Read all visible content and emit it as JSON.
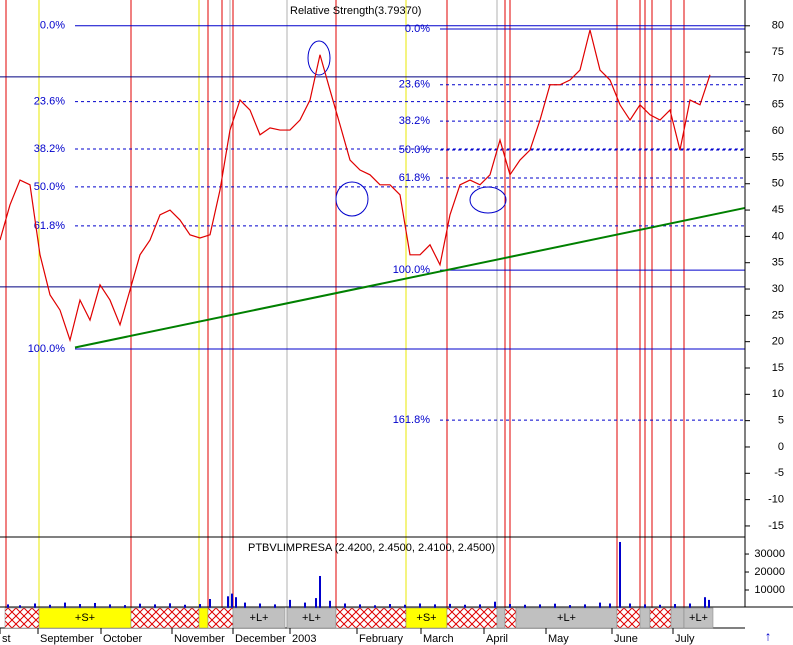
{
  "chart_data": [
    {
      "type": "line",
      "title": "Relative Strength(3.79370)",
      "xlim": [
        0,
        745
      ],
      "ylim": [
        -17.1,
        84.9
      ],
      "yticks": [
        80,
        75,
        70,
        65,
        60,
        55,
        50,
        45,
        40,
        35,
        30,
        25,
        20,
        15,
        10,
        5,
        0,
        -5,
        -10,
        -15
      ],
      "xticks": [
        {
          "value": 0,
          "label": "st"
        },
        {
          "value": 38,
          "label": "September"
        },
        {
          "value": 101,
          "label": "October"
        },
        {
          "value": 172,
          "label": "November"
        },
        {
          "value": 233,
          "label": "December"
        },
        {
          "value": 290,
          "label": "2003"
        },
        {
          "value": 357,
          "label": "February"
        },
        {
          "value": 421,
          "label": "March"
        },
        {
          "value": 484,
          "label": "April"
        },
        {
          "value": 546,
          "label": "May"
        },
        {
          "value": 612,
          "label": "June"
        },
        {
          "value": 673,
          "label": "July"
        }
      ],
      "series": [
        {
          "color": "#e00000",
          "x": [
            0,
            10,
            20,
            30,
            40,
            50,
            60,
            70,
            80,
            90,
            100,
            110,
            120,
            130,
            140,
            150,
            160,
            170,
            180,
            190,
            200,
            210,
            220,
            230,
            240,
            250,
            260,
            270,
            280,
            290,
            300,
            310,
            320,
            330,
            340,
            350,
            360,
            370,
            380,
            390,
            400,
            410,
            420,
            430,
            440,
            450,
            460,
            470,
            480,
            490,
            500,
            510,
            520,
            530,
            540,
            550,
            560,
            570,
            580,
            590,
            600,
            610,
            620,
            630,
            640,
            650,
            660,
            670,
            680,
            690,
            700,
            710
          ],
          "values": [
            39.3,
            46.0,
            50.7,
            49.8,
            36.5,
            28.9,
            26.0,
            20.3,
            27.9,
            24.1,
            30.8,
            27.9,
            23.2,
            29.8,
            36.5,
            39.3,
            44.1,
            45.0,
            43.1,
            40.3,
            39.7,
            40.3,
            48.8,
            60.2,
            65.9,
            64.0,
            59.3,
            60.6,
            60.2,
            60.2,
            62.1,
            65.9,
            74.5,
            67.8,
            61.2,
            54.5,
            52.6,
            51.7,
            49.8,
            49.8,
            47.9,
            36.5,
            36.5,
            38.4,
            34.6,
            44.1,
            49.8,
            50.7,
            49.8,
            51.7,
            58.3,
            51.7,
            54.5,
            56.4,
            62.1,
            68.8,
            68.8,
            69.7,
            71.6,
            79.2,
            71.6,
            69.7,
            65.0,
            62.1,
            65.0,
            63.1,
            62.1,
            64.0,
            56.4,
            65.9,
            65.0,
            70.7
          ]
        }
      ],
      "fib_levels": [
        {
          "value": 80,
          "label": "0.0%",
          "x0": 75,
          "style": "solid"
        },
        {
          "value": 65.6,
          "label": "23.6%",
          "x0": 75,
          "style": "dotted"
        },
        {
          "value": 56.6,
          "label": "38.2%",
          "x0": 75,
          "style": "dotted"
        },
        {
          "value": 49.4,
          "label": "50.0%",
          "x0": 75,
          "style": "dotted"
        },
        {
          "value": 42.0,
          "label": "61.8%",
          "x0": 75,
          "style": "dotted"
        },
        {
          "value": 18.6,
          "label": "100.0%",
          "x0": 75,
          "style": "solid"
        },
        {
          "value": 79.4,
          "label": "0.0%",
          "x0": 440,
          "style": "solid"
        },
        {
          "value": 68.8,
          "label": "23.6%",
          "x0": 440,
          "style": "dotted"
        },
        {
          "value": 61.9,
          "label": "38.2%",
          "x0": 440,
          "style": "dotted"
        },
        {
          "value": 56.4,
          "label": "50.0%",
          "x0": 440,
          "style": "dotted"
        },
        {
          "value": 51.1,
          "label": "61.8%",
          "x0": 440,
          "style": "dotted"
        },
        {
          "value": 33.6,
          "label": "100.0%",
          "x0": 440,
          "style": "solid"
        },
        {
          "value": 5.1,
          "label": "161.8%",
          "x0": 440,
          "style": "dotted"
        }
      ],
      "hlines": [
        70.3,
        30.4
      ],
      "trendline": {
        "color": "#008000",
        "x": [
          75,
          745
        ],
        "values": [
          18.9,
          45.4
        ]
      },
      "vlines": [
        {
          "x": 6,
          "color": "#e00000"
        },
        {
          "x": 39,
          "color": "#e8e800"
        },
        {
          "x": 131,
          "color": "#e00000"
        },
        {
          "x": 199,
          "color": "#e8e800"
        },
        {
          "x": 208,
          "color": "#e00000"
        },
        {
          "x": 222,
          "color": "#e00000"
        },
        {
          "x": 230,
          "color": "#b0b0b0"
        },
        {
          "x": 233,
          "color": "#e00000"
        },
        {
          "x": 287,
          "color": "#b0b0b0"
        },
        {
          "x": 336,
          "color": "#e00000"
        },
        {
          "x": 406,
          "color": "#e8e800"
        },
        {
          "x": 447,
          "color": "#e00000"
        },
        {
          "x": 497,
          "color": "#b0b0b0"
        },
        {
          "x": 505,
          "color": "#e00000"
        },
        {
          "x": 510,
          "color": "#e00000"
        },
        {
          "x": 617,
          "color": "#e00000"
        },
        {
          "x": 640,
          "color": "#e00000"
        },
        {
          "x": 645,
          "color": "#e00000"
        },
        {
          "x": 652,
          "color": "#e00000"
        },
        {
          "x": 671,
          "color": "#e00000"
        },
        {
          "x": 684,
          "color": "#e00000"
        }
      ],
      "signal_strip": [
        {
          "x": [
            5,
            39
          ],
          "kind": "hatch"
        },
        {
          "x": [
            39,
            131
          ],
          "kind": "yellow",
          "label": "+S+"
        },
        {
          "x": [
            131,
            199
          ],
          "kind": "hatch"
        },
        {
          "x": [
            199,
            208
          ],
          "kind": "yellow"
        },
        {
          "x": [
            208,
            233
          ],
          "kind": "hatch"
        },
        {
          "x": [
            233,
            285
          ],
          "kind": "gray",
          "label": "+L+"
        },
        {
          "x": [
            287,
            336
          ],
          "kind": "gray",
          "label": "+L+"
        },
        {
          "x": [
            336,
            406
          ],
          "kind": "hatch"
        },
        {
          "x": [
            406,
            447
          ],
          "kind": "yellow",
          "label": "+S+"
        },
        {
          "x": [
            447,
            497
          ],
          "kind": "hatch"
        },
        {
          "x": [
            497,
            505
          ],
          "kind": "gray"
        },
        {
          "x": [
            505,
            516
          ],
          "kind": "hatch"
        },
        {
          "x": [
            516,
            617
          ],
          "kind": "gray",
          "label": "+L+"
        },
        {
          "x": [
            617,
            640
          ],
          "kind": "hatch"
        },
        {
          "x": [
            640,
            650
          ],
          "kind": "gray"
        },
        {
          "x": [
            650,
            671
          ],
          "kind": "hatch"
        },
        {
          "x": [
            671,
            684
          ],
          "kind": "gray"
        },
        {
          "x": [
            684,
            713
          ],
          "kind": "gray",
          "label": "+L+"
        }
      ]
    },
    {
      "type": "bar",
      "title": "PTBVLIMPRESA (2.4200, 2.4500, 2.4100, 2.4500)",
      "xlim": [
        0,
        745
      ],
      "ylim": [
        0,
        37800
      ],
      "yticks": [
        10000,
        20000,
        30000
      ],
      "color": "#0000cc",
      "x": [
        8,
        20,
        35,
        50,
        65,
        80,
        95,
        110,
        125,
        140,
        155,
        170,
        185,
        200,
        210,
        228,
        232,
        236,
        245,
        260,
        275,
        290,
        305,
        316,
        320,
        330,
        345,
        360,
        375,
        390,
        405,
        420,
        435,
        450,
        465,
        480,
        495,
        510,
        525,
        540,
        555,
        570,
        585,
        600,
        610,
        620,
        630,
        645,
        660,
        675,
        690,
        705,
        709
      ],
      "values": [
        2000,
        1500,
        2500,
        1800,
        3000,
        2200,
        2800,
        2000,
        1600,
        2400,
        2000,
        2600,
        1800,
        2200,
        5000,
        6500,
        8000,
        6000,
        3000,
        2500,
        2000,
        4500,
        3000,
        5500,
        17800,
        4000,
        2500,
        2000,
        1500,
        2200,
        1800,
        2500,
        2000,
        2300,
        1800,
        2000,
        3500,
        2200,
        1800,
        2000,
        2400,
        1600,
        2000,
        3000,
        2500,
        36700,
        2500,
        2000,
        1800,
        2200,
        2500,
        6000,
        4500
      ]
    }
  ]
}
